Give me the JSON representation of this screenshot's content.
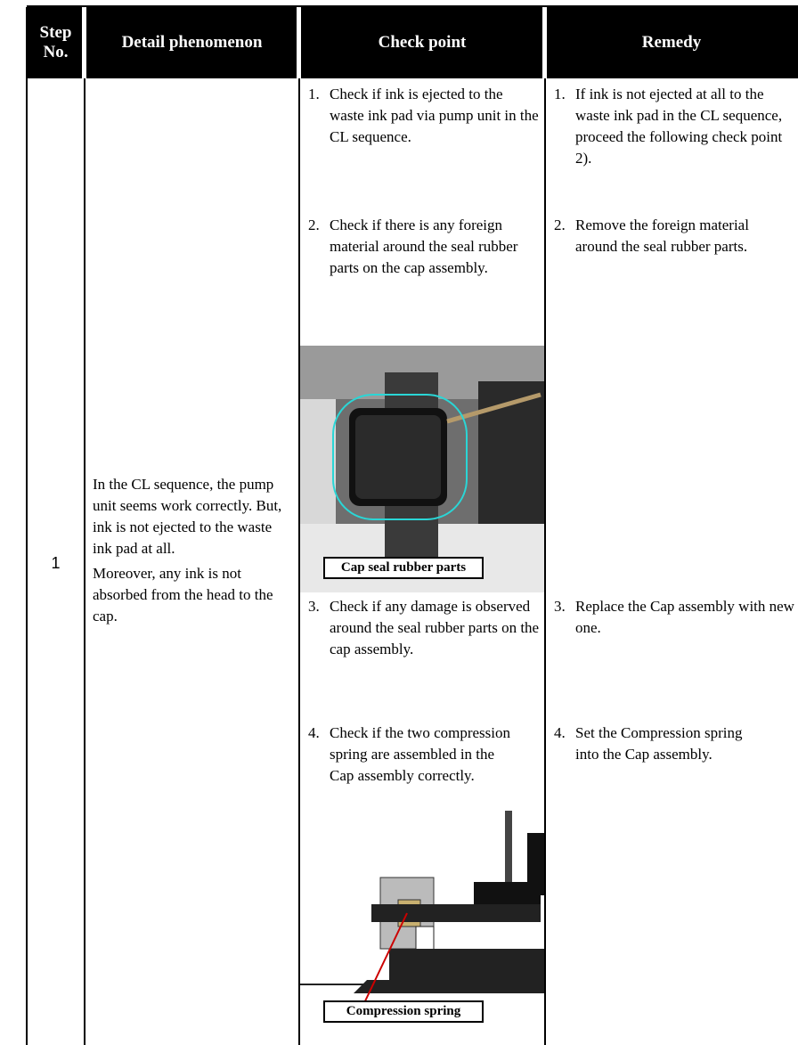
{
  "header": {
    "columns": [
      "Step No.",
      "Detail phenomenon",
      "Check point",
      "Remedy"
    ]
  },
  "row": {
    "step": "1",
    "detail": [
      "In the CL sequence, the pump unit seems work correctly. But, ink is not ejected to the waste ink pad at all.",
      "Moreover, any ink is not absorbed  from the head to the cap."
    ],
    "checks": [
      {
        "number": "1.",
        "text": "Check if ink is ejected to the waste ink pad via pump unit in the CL sequence."
      },
      {
        "number": "2.",
        "text": "Check if there is any foreign material around the seal rubber parts on the cap assembly."
      },
      {
        "number": "3.",
        "text": "Check if any damage is observed around the seal rubber parts on the cap assembly."
      },
      {
        "number": "4.",
        "text": "Check if the two compression spring are assembled in the Cap assembly correctly."
      }
    ],
    "remedies": [
      {
        "number": "1.",
        "text": "If ink is not ejected at all to the waste ink pad in the CL sequence, proceed the following check point 2)."
      },
      {
        "number": "2.",
        "text": "Remove the foreign material around the seal rubber parts."
      },
      {
        "number": "3.",
        "text": "Replace the Cap assembly with new one."
      },
      {
        "number": "4.",
        "text": "Set the Compression spring  into the Cap assembly."
      }
    ],
    "figures": [
      {
        "label": "Cap seal rubber parts"
      },
      {
        "label": "Compression spring"
      }
    ]
  }
}
